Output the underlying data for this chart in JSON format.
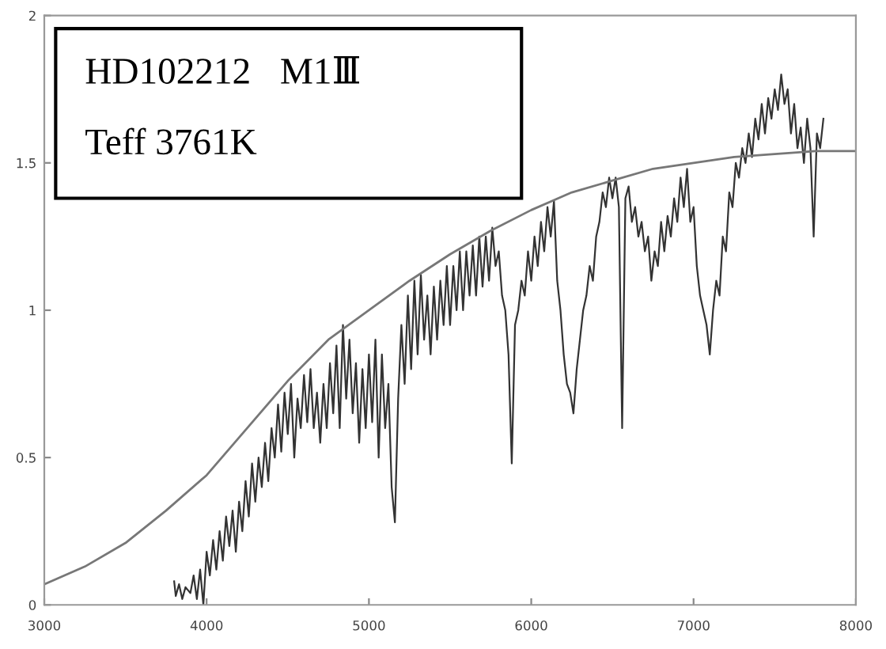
{
  "chart_data": {
    "type": "line",
    "annotations": [
      "HD102212　M1Ⅲ",
      "Teff 3761K"
    ],
    "series": [
      {
        "color": "#333333",
        "x": [
          3800,
          3810,
          3830,
          3850,
          3870,
          3900,
          3920,
          3940,
          3960,
          3980,
          4000,
          4020,
          4040,
          4060,
          4080,
          4100,
          4120,
          4140,
          4160,
          4180,
          4200,
          4220,
          4240,
          4260,
          4280,
          4300,
          4320,
          4340,
          4360,
          4380,
          4400,
          4420,
          4440,
          4460,
          4480,
          4500,
          4520,
          4540,
          4560,
          4580,
          4600,
          4620,
          4640,
          4660,
          4680,
          4700,
          4720,
          4740,
          4760,
          4780,
          4800,
          4820,
          4840,
          4860,
          4880,
          4900,
          4920,
          4940,
          4960,
          4980,
          5000,
          5020,
          5040,
          5060,
          5080,
          5100,
          5120,
          5140,
          5160,
          5180,
          5200,
          5220,
          5240,
          5260,
          5280,
          5300,
          5320,
          5340,
          5360,
          5380,
          5400,
          5420,
          5440,
          5460,
          5480,
          5500,
          5520,
          5540,
          5560,
          5580,
          5600,
          5620,
          5640,
          5660,
          5680,
          5700,
          5720,
          5740,
          5760,
          5780,
          5800,
          5820,
          5840,
          5860,
          5880,
          5900,
          5920,
          5940,
          5960,
          5980,
          6000,
          6020,
          6040,
          6060,
          6080,
          6100,
          6120,
          6140,
          6160,
          6180,
          6200,
          6220,
          6240,
          6260,
          6280,
          6300,
          6320,
          6340,
          6360,
          6380,
          6400,
          6420,
          6440,
          6460,
          6480,
          6500,
          6520,
          6540,
          6560,
          6580,
          6600,
          6620,
          6640,
          6660,
          6680,
          6700,
          6720,
          6740,
          6760,
          6780,
          6800,
          6820,
          6840,
          6860,
          6880,
          6900,
          6920,
          6940,
          6960,
          6980,
          7000,
          7020,
          7040,
          7060,
          7080,
          7100,
          7120,
          7140,
          7160,
          7180,
          7200,
          7220,
          7240,
          7260,
          7280,
          7300,
          7320,
          7340,
          7360,
          7380,
          7400,
          7420,
          7440,
          7460,
          7480,
          7500,
          7520,
          7540,
          7560,
          7580,
          7600,
          7620,
          7640,
          7660,
          7680,
          7700,
          7720,
          7740,
          7760,
          7780,
          7800
        ],
        "values": [
          0.08,
          0.03,
          0.07,
          0.02,
          0.06,
          0.04,
          0.1,
          0.02,
          0.12,
          0.0,
          0.18,
          0.1,
          0.22,
          0.12,
          0.25,
          0.15,
          0.3,
          0.2,
          0.32,
          0.18,
          0.35,
          0.25,
          0.42,
          0.3,
          0.48,
          0.35,
          0.5,
          0.4,
          0.55,
          0.42,
          0.6,
          0.5,
          0.68,
          0.52,
          0.72,
          0.58,
          0.75,
          0.5,
          0.7,
          0.6,
          0.78,
          0.62,
          0.8,
          0.6,
          0.72,
          0.55,
          0.75,
          0.6,
          0.82,
          0.65,
          0.88,
          0.6,
          0.95,
          0.7,
          0.9,
          0.65,
          0.82,
          0.55,
          0.8,
          0.6,
          0.85,
          0.62,
          0.9,
          0.5,
          0.85,
          0.6,
          0.75,
          0.4,
          0.28,
          0.7,
          0.95,
          0.75,
          1.05,
          0.8,
          1.1,
          0.85,
          1.12,
          0.9,
          1.05,
          0.85,
          1.08,
          0.9,
          1.1,
          0.95,
          1.15,
          0.95,
          1.15,
          1.0,
          1.2,
          1.0,
          1.2,
          1.05,
          1.22,
          1.05,
          1.25,
          1.08,
          1.25,
          1.1,
          1.28,
          1.15,
          1.2,
          1.05,
          1.0,
          0.85,
          0.48,
          0.95,
          1.0,
          1.1,
          1.05,
          1.2,
          1.1,
          1.25,
          1.15,
          1.3,
          1.2,
          1.35,
          1.25,
          1.37,
          1.1,
          1.0,
          0.85,
          0.75,
          0.72,
          0.65,
          0.8,
          0.9,
          1.0,
          1.05,
          1.15,
          1.1,
          1.25,
          1.3,
          1.4,
          1.35,
          1.45,
          1.38,
          1.45,
          1.35,
          0.6,
          1.38,
          1.42,
          1.3,
          1.35,
          1.25,
          1.3,
          1.2,
          1.25,
          1.1,
          1.2,
          1.15,
          1.3,
          1.2,
          1.32,
          1.25,
          1.38,
          1.3,
          1.45,
          1.35,
          1.48,
          1.3,
          1.35,
          1.15,
          1.05,
          1.0,
          0.95,
          0.85,
          1.0,
          1.1,
          1.05,
          1.25,
          1.2,
          1.4,
          1.35,
          1.5,
          1.45,
          1.55,
          1.5,
          1.6,
          1.52,
          1.65,
          1.58,
          1.7,
          1.6,
          1.72,
          1.65,
          1.75,
          1.68,
          1.8,
          1.7,
          1.75,
          1.6,
          1.7,
          1.55,
          1.62,
          1.5,
          1.65,
          1.55,
          1.25,
          1.6,
          1.55,
          1.65
        ]
      },
      {
        "color": "#777777",
        "x": [
          3000,
          3250,
          3500,
          3750,
          4000,
          4250,
          4500,
          4750,
          5000,
          5250,
          5500,
          5750,
          6000,
          6250,
          6500,
          6750,
          7000,
          7250,
          7500,
          7750,
          8000
        ],
        "values": [
          0.07,
          0.13,
          0.21,
          0.32,
          0.44,
          0.6,
          0.76,
          0.9,
          1.0,
          1.1,
          1.19,
          1.27,
          1.34,
          1.4,
          1.44,
          1.48,
          1.5,
          1.52,
          1.53,
          1.54,
          1.54
        ]
      }
    ],
    "xlim": [
      3000,
      8000
    ],
    "xticks": [
      3000,
      4000,
      5000,
      6000,
      7000,
      8000
    ],
    "ylim": [
      0,
      2
    ],
    "yticks": [
      0,
      0.5,
      1,
      1.5,
      2
    ],
    "grid": false,
    "legend": false,
    "marker": "none",
    "line_style": "solid"
  }
}
